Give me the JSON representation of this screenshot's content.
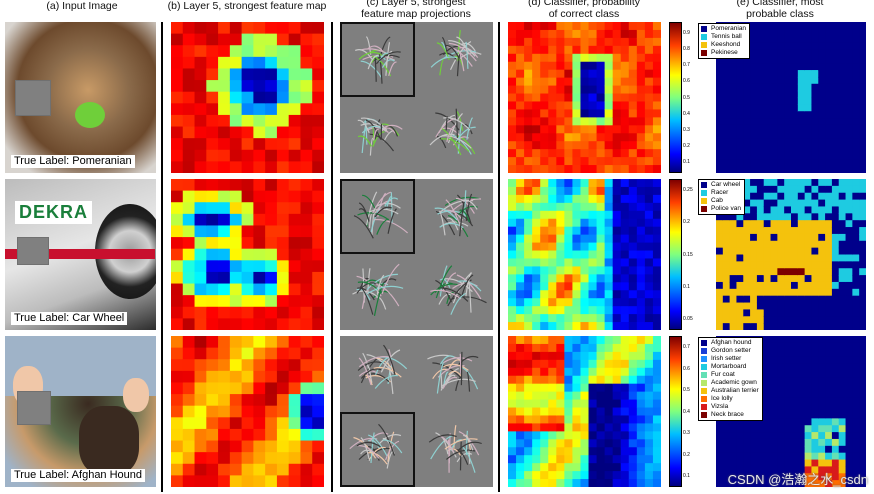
{
  "column_titles": {
    "a": "(a) Input Image",
    "b": "(b) Layer 5, strongest feature map",
    "c": "(c) Layer 5, strongest\nfeature map projections",
    "d": "(d) Classifier, probability\nof correct class",
    "e": "(e) Classifier, most\nprobable class"
  },
  "rows": [
    {
      "true_label": "True Label: Pomeranian",
      "photo_colors": [
        "#d8d4cf",
        "#8a6a4a",
        "#c89a66",
        "#6d4a2d"
      ],
      "accent_color": "#6fcf3a",
      "colorbar_ticks": [
        "0.9",
        "0.8",
        "0.7",
        "0.6",
        "0.5",
        "0.4",
        "0.3",
        "0.2",
        "0.1"
      ],
      "legend": [
        {
          "label": "Pomeranian",
          "color": "#00008b"
        },
        {
          "label": "Tennis ball",
          "color": "#1ecbe1"
        },
        {
          "label": "Keeshond",
          "color": "#f4c20d"
        },
        {
          "label": "Pekinese",
          "color": "#7b0000"
        }
      ],
      "boxed_projection": 0
    },
    {
      "true_label": "True Label: Car Wheel",
      "photo_colors": [
        "#bcbcbc",
        "#e6e6e6",
        "#2c2c2c",
        "#c8102e"
      ],
      "accent_color": "#1a7f3b",
      "photo_text": "DEKRA",
      "colorbar_ticks": [
        "0.25",
        "0.2",
        "0.15",
        "0.1",
        "0.05"
      ],
      "legend": [
        {
          "label": "Car wheel",
          "color": "#00008b"
        },
        {
          "label": "Racer",
          "color": "#1ecbe1"
        },
        {
          "label": "Cab",
          "color": "#f4c20d"
        },
        {
          "label": "Police van",
          "color": "#7b0000"
        }
      ],
      "boxed_projection": 0
    },
    {
      "true_label": "True Label: Afghan Hound",
      "photo_colors": [
        "#9fb3c8",
        "#5a6b4b",
        "#3a2a20",
        "#c79a6a"
      ],
      "accent_color": "#f0c7a8",
      "colorbar_ticks": [
        "0.7",
        "0.6",
        "0.5",
        "0.4",
        "0.3",
        "0.2",
        "0.1"
      ],
      "legend": [
        {
          "label": "Afghan hound",
          "color": "#00008b"
        },
        {
          "label": "Gordon setter",
          "color": "#1a3fd6"
        },
        {
          "label": "Irish setter",
          "color": "#1e90ff"
        },
        {
          "label": "Mortarboard",
          "color": "#1ecbe1"
        },
        {
          "label": "Fur coat",
          "color": "#63e0b5"
        },
        {
          "label": "Academic gown",
          "color": "#b5e86b"
        },
        {
          "label": "Australian terrier",
          "color": "#f4c20d"
        },
        {
          "label": "Ice lolly",
          "color": "#ff6d00"
        },
        {
          "label": "Vizsla",
          "color": "#d81b1b"
        },
        {
          "label": "Neck brace",
          "color": "#7b0000"
        }
      ],
      "boxed_projection": 2
    }
  ],
  "watermark": "CSDN @浩瀚之水_csdn"
}
